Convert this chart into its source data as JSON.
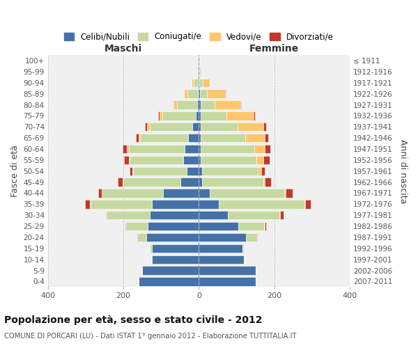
{
  "age_groups": [
    "0-4",
    "5-9",
    "10-14",
    "15-19",
    "20-24",
    "25-29",
    "30-34",
    "35-39",
    "40-44",
    "45-49",
    "50-54",
    "55-59",
    "60-64",
    "65-69",
    "70-74",
    "75-79",
    "80-84",
    "85-89",
    "90-94",
    "95-99",
    "100+"
  ],
  "birth_years": [
    "2007-2011",
    "2002-2006",
    "1997-2001",
    "1992-1996",
    "1987-1991",
    "1982-1986",
    "1977-1981",
    "1972-1976",
    "1967-1971",
    "1962-1966",
    "1957-1961",
    "1952-1956",
    "1947-1951",
    "1942-1946",
    "1937-1941",
    "1932-1936",
    "1927-1931",
    "1922-1926",
    "1917-1921",
    "1912-1916",
    "≤ 1911"
  ],
  "males_celibe": [
    160,
    150,
    125,
    125,
    140,
    135,
    130,
    125,
    95,
    48,
    32,
    42,
    38,
    28,
    18,
    8,
    5,
    3,
    2,
    2,
    1
  ],
  "males_coniugato": [
    0,
    0,
    2,
    4,
    22,
    58,
    112,
    162,
    162,
    152,
    142,
    142,
    148,
    128,
    112,
    88,
    52,
    28,
    12,
    2,
    1
  ],
  "males_vedovo": [
    0,
    0,
    0,
    0,
    0,
    0,
    0,
    1,
    1,
    1,
    2,
    2,
    4,
    4,
    7,
    8,
    8,
    8,
    5,
    1,
    0
  ],
  "males_divorziato": [
    0,
    0,
    0,
    0,
    1,
    2,
    2,
    14,
    9,
    14,
    7,
    13,
    11,
    7,
    5,
    3,
    2,
    0,
    0,
    0,
    0
  ],
  "females_nubile": [
    150,
    150,
    120,
    115,
    125,
    105,
    76,
    52,
    28,
    9,
    9,
    5,
    5,
    5,
    5,
    5,
    4,
    3,
    2,
    1,
    1
  ],
  "females_coniugata": [
    0,
    0,
    1,
    4,
    28,
    68,
    138,
    228,
    198,
    162,
    148,
    148,
    142,
    118,
    98,
    68,
    38,
    18,
    8,
    2,
    1
  ],
  "females_vedova": [
    0,
    0,
    0,
    0,
    0,
    1,
    1,
    2,
    4,
    4,
    9,
    18,
    28,
    52,
    68,
    72,
    68,
    48,
    18,
    4,
    1
  ],
  "females_divorziata": [
    0,
    0,
    0,
    1,
    2,
    4,
    10,
    14,
    18,
    16,
    9,
    16,
    14,
    9,
    7,
    4,
    2,
    2,
    0,
    0,
    0
  ],
  "colors": {
    "celibe": "#4472a8",
    "coniugato": "#c5d9a0",
    "vedovo": "#ffc66b",
    "divorziato": "#c0392b"
  },
  "title": "Popolazione per età, sesso e stato civile - 2012",
  "subtitle": "COMUNE DI PORCARI (LU) - Dati ISTAT 1° gennaio 2012 - Elaborazione TUTTITALIA.IT",
  "label_maschi": "Maschi",
  "label_femmine": "Femmine",
  "ylabel_left": "Fasce di età",
  "ylabel_right": "Anni di nascita",
  "xlim": 400,
  "legend_labels": [
    "Celibi/Nubili",
    "Coniugati/e",
    "Vedovi/e",
    "Divorziati/e"
  ],
  "bg_color": "#ffffff",
  "plot_bg": "#f0f0f0",
  "grid_color": "#cccccc"
}
